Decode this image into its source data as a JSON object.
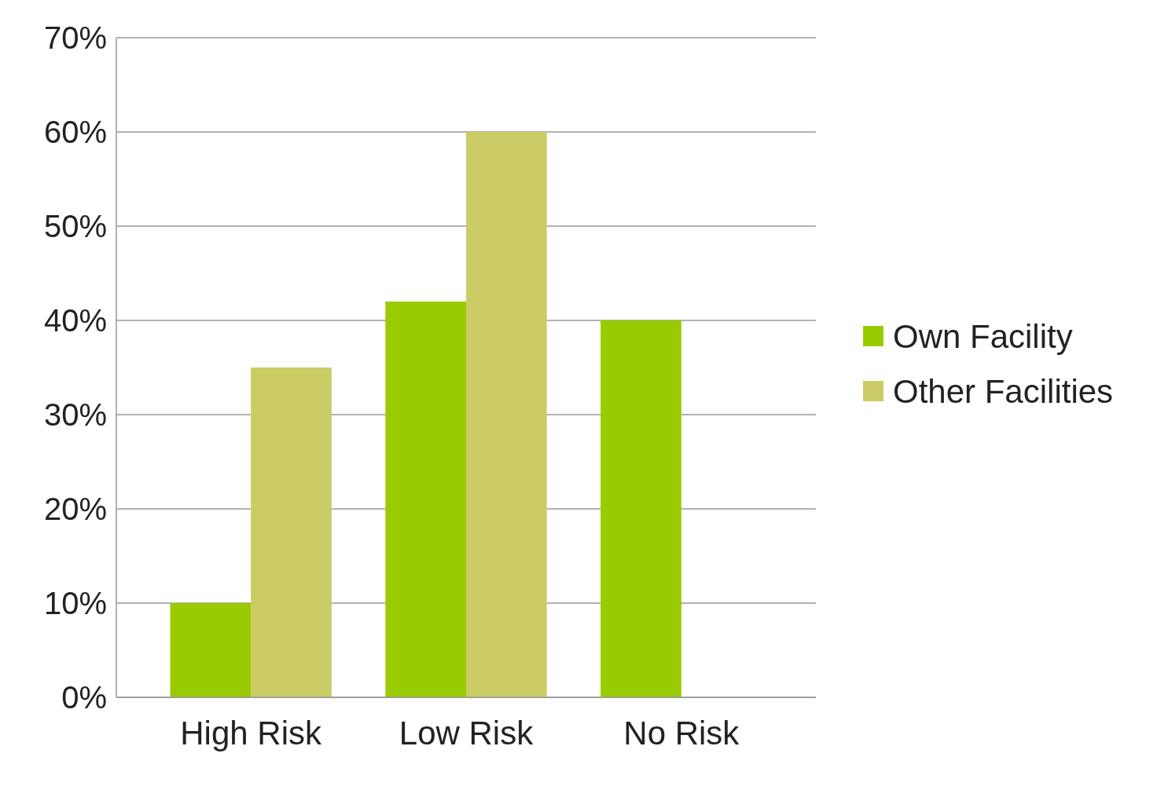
{
  "chart_data": {
    "type": "bar",
    "categories": [
      "High Risk",
      "Low Risk",
      "No Risk"
    ],
    "series": [
      {
        "name": "Own Facility",
        "color": "#99cc00",
        "values": [
          10,
          42,
          40
        ]
      },
      {
        "name": "Other Facilities",
        "color": "#cccc66",
        "values": [
          35,
          60,
          0
        ]
      }
    ],
    "ylim": [
      0,
      70
    ],
    "yticks": [
      {
        "value": 0,
        "label": "0%"
      },
      {
        "value": 10,
        "label": "10%"
      },
      {
        "value": 20,
        "label": "20%"
      },
      {
        "value": 30,
        "label": "30%"
      },
      {
        "value": 40,
        "label": "40%"
      },
      {
        "value": 50,
        "label": "50%"
      },
      {
        "value": 60,
        "label": "60%"
      },
      {
        "value": 70,
        "label": "70%"
      }
    ],
    "grid": "y",
    "legend": "right"
  }
}
